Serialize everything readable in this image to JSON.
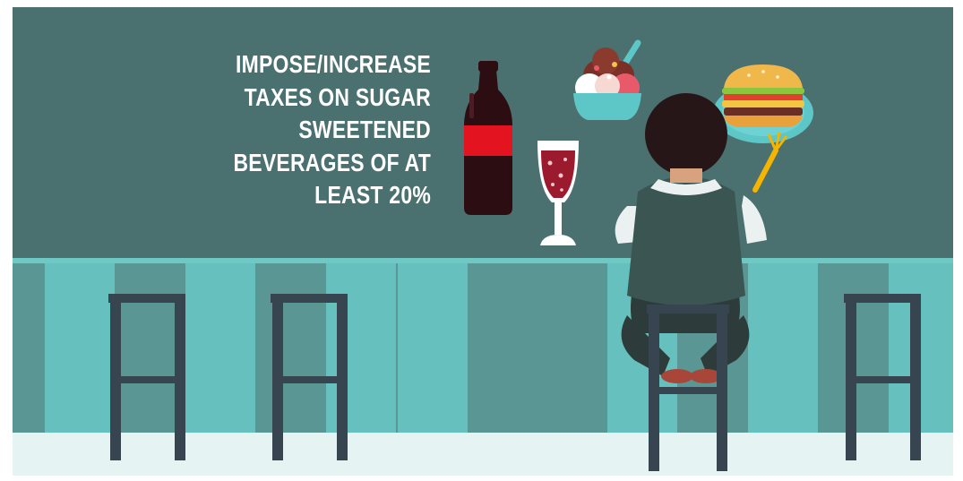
{
  "caption": {
    "lines": [
      "IMPOSE/INCREASE",
      "TAXES ON SUGAR",
      "SWEETENED",
      "BEVERAGES OF AT",
      "LEAST 20%"
    ]
  },
  "colors": {
    "wall": "#4a716f",
    "stripe_light": "#66c0bd",
    "stripe_dark": "#5a9794",
    "floor": "#e5f3f3",
    "stool": "#36454f",
    "bottle": "#2c0d12",
    "bottle_label": "#e3131f",
    "hair": "#271617",
    "shirt": "#ebf1f1",
    "vest": "#3b5553"
  },
  "icons": [
    "soda-bottle-icon",
    "wine-glass-icon",
    "ice-cream-bowl-icon",
    "burger-plate-icon",
    "fork-icon",
    "seated-person-icon",
    "bar-stool-icon"
  ]
}
